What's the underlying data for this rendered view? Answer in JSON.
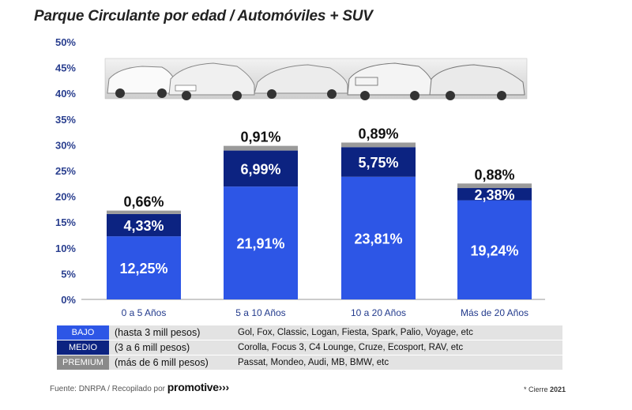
{
  "title": "Parque Circulante por edad / Automóviles + SUV",
  "colors": {
    "bajo": "#2d56e6",
    "medio": "#0c2381",
    "premium": "#9a9a9a"
  },
  "chart_data": {
    "type": "bar",
    "stacked": true,
    "categories": [
      "0 a 5 Años",
      "5 a 10 Años",
      "10 a 20 Años",
      "Más de 20 Años"
    ],
    "series": [
      {
        "name": "BAJO",
        "values": [
          12.25,
          21.91,
          23.81,
          19.24
        ]
      },
      {
        "name": "MEDIO",
        "values": [
          4.33,
          6.99,
          5.75,
          2.38
        ]
      },
      {
        "name": "PREMIUM",
        "values": [
          0.66,
          0.91,
          0.89,
          0.88
        ]
      }
    ],
    "data_labels": [
      [
        "12,25%",
        "21,91%",
        "23,81%",
        "19,24%"
      ],
      [
        "4,33%",
        "6,99%",
        "5,75%",
        "2,38%"
      ],
      [
        "0,66%",
        "0,91%",
        "0,89%",
        "0,88%"
      ]
    ],
    "yticks": [
      "0%",
      "5%",
      "10%",
      "15%",
      "20%",
      "25%",
      "30%",
      "35%",
      "40%",
      "45%",
      "50%"
    ],
    "ylim": [
      0,
      50
    ],
    "unit": "%"
  },
  "legend": [
    {
      "key": "BAJO",
      "range": "(hasta 3 mill pesos)",
      "models": "Gol, Fox, Classic, Logan, Fiesta, Spark, Palio, Voyage, etc"
    },
    {
      "key": "MEDIO",
      "range": "(3 a 6 mill pesos)",
      "models": "Corolla, Focus 3, C4 Lounge, Cruze, Ecosport, RAV, etc"
    },
    {
      "key": "PREMIUM",
      "range": "(más de 6 mill pesos)",
      "models": "Passat, Mondeo, Audi, MB, BMW, etc"
    }
  ],
  "source": {
    "prefix": "Fuente: DNRPA / Recopilado por",
    "brand": "promotive",
    "brand_mark": "›››"
  },
  "cierre": {
    "prefix": "* Cierre",
    "year": "2021"
  }
}
